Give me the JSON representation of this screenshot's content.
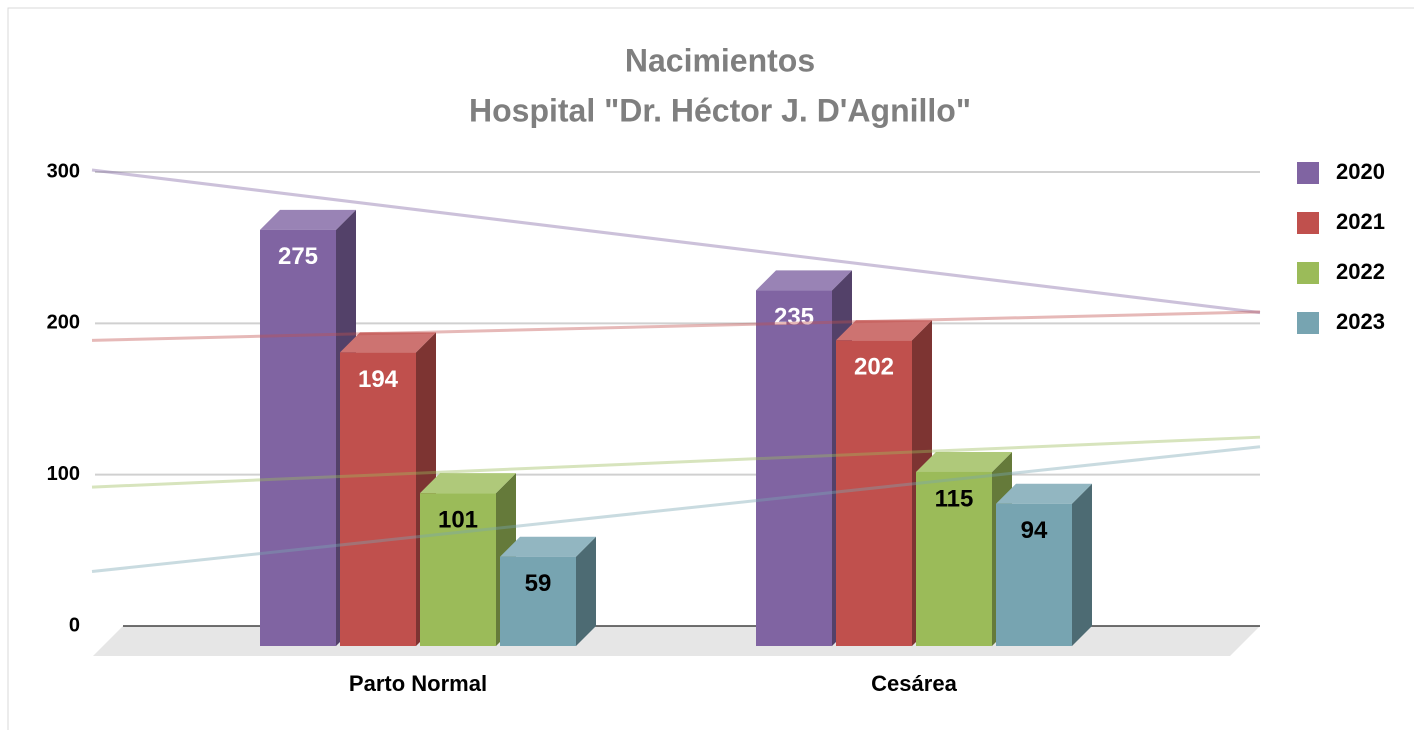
{
  "chart_data": {
    "type": "bar3d",
    "title": [
      "Nacimientos",
      "Hospital \"Dr. Héctor J. D'Agnillo\""
    ],
    "categories": [
      "Parto Normal",
      "Cesárea"
    ],
    "series": [
      {
        "name": "2020",
        "color": "#8064a2",
        "values": [
          275,
          235
        ]
      },
      {
        "name": "2021",
        "color": "#c0504d",
        "values": [
          194,
          202
        ]
      },
      {
        "name": "2022",
        "color": "#9bbb59",
        "values": [
          101,
          115
        ]
      },
      {
        "name": "2023",
        "color": "#77a4b1",
        "values": [
          59,
          94
        ]
      }
    ],
    "ylim": [
      0,
      300
    ],
    "yticks": [
      0,
      100,
      200,
      300
    ],
    "grid": true,
    "legend": "right",
    "trendline": true
  }
}
